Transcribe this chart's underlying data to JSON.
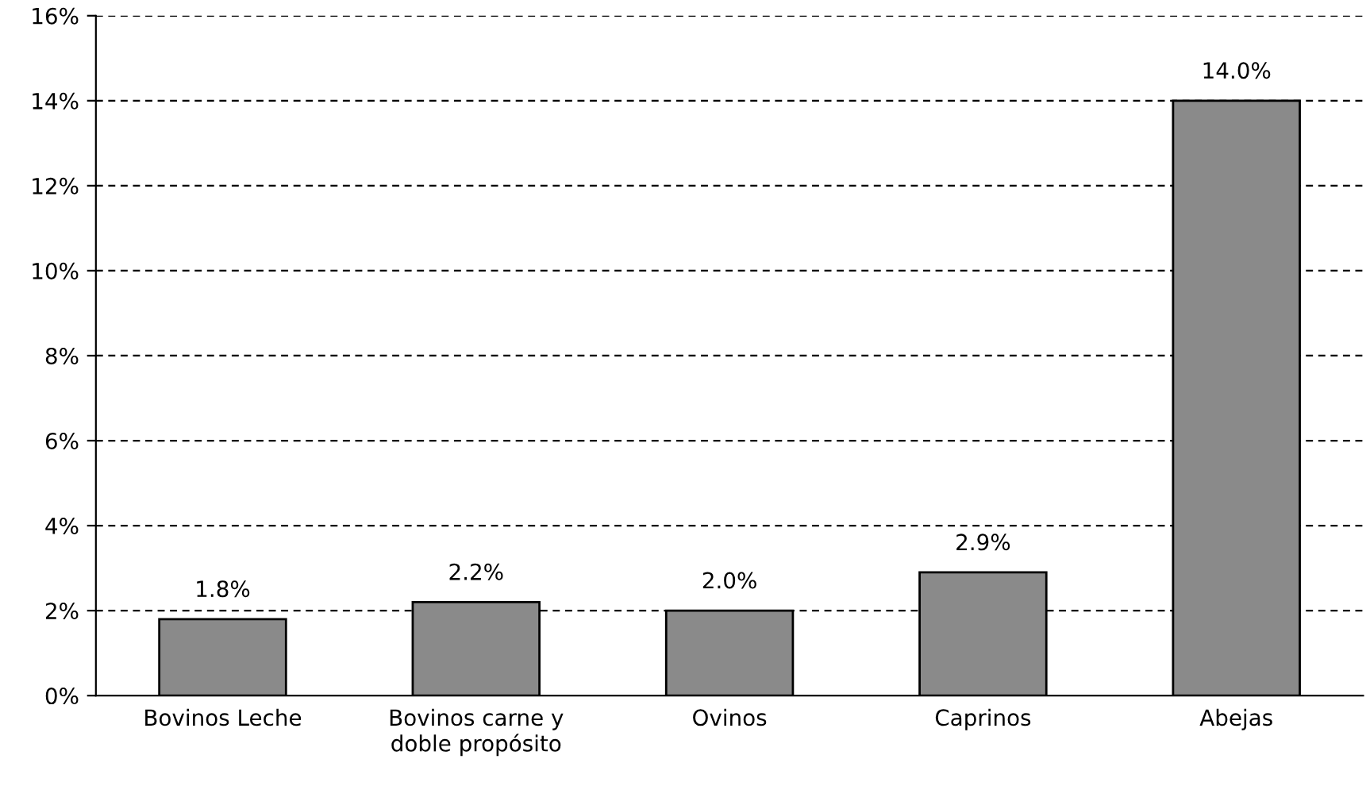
{
  "chart_data": {
    "type": "bar",
    "categories": [
      "Bovinos Leche",
      "Bovinos carne y\ndoble propósito",
      "Ovinos",
      "Caprinos",
      "Abejas"
    ],
    "values": [
      1.8,
      2.2,
      2.0,
      2.9,
      14.0
    ],
    "value_labels": [
      "1.8%",
      "2.2%",
      "2.0%",
      "2.9%",
      "14.0%"
    ],
    "color": "#8a8a8a",
    "ylim": [
      0,
      16
    ],
    "yticks": [
      {
        "value": 0,
        "label": "0%"
      },
      {
        "value": 2,
        "label": "2%"
      },
      {
        "value": 4,
        "label": "4%"
      },
      {
        "value": 6,
        "label": "6%"
      },
      {
        "value": 8,
        "label": "8%"
      },
      {
        "value": 10,
        "label": "10%"
      },
      {
        "value": 12,
        "label": "12%"
      },
      {
        "value": 14,
        "label": "14%"
      },
      {
        "value": 16,
        "label": "16%"
      }
    ],
    "grid": "y",
    "line_style": "dashed",
    "legend": false
  }
}
